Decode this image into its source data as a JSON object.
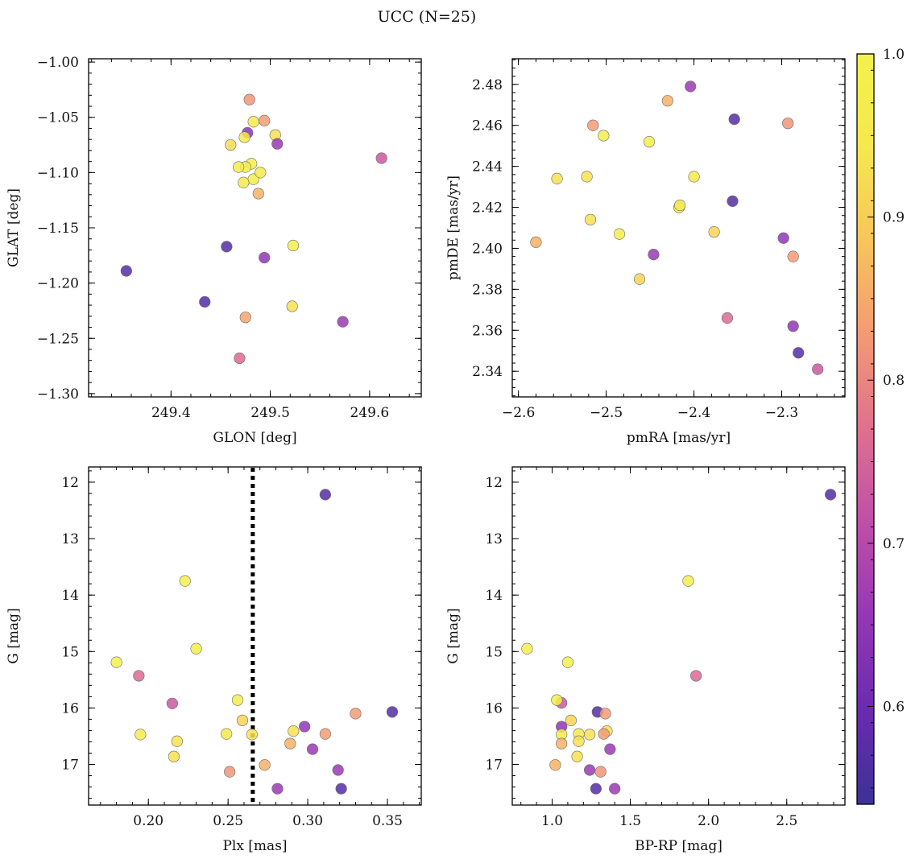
{
  "figure": {
    "title": "UCC (N=25)"
  },
  "colorbar": {
    "range": [
      0.54,
      1.0
    ],
    "ticks": [
      0.6,
      0.7,
      0.8,
      0.9,
      1.0
    ],
    "tick_labels": [
      "0.6",
      "0.7",
      "0.8",
      "0.9",
      "1.0"
    ],
    "colormap": "plasma",
    "stops": [
      "#3c3197",
      "#6a2bb0",
      "#9537b5",
      "#bf4fa8",
      "#e0708e",
      "#f39a75",
      "#f9c45b",
      "#f6e84d",
      "#f2f24c"
    ]
  },
  "chart_data": [
    {
      "type": "scatter",
      "panel": "top-left",
      "xlabel": "GLON [deg]",
      "ylabel": "GLAT [deg]",
      "xlim": [
        249.317,
        249.652
      ],
      "ylim": [
        -1.303,
        -0.997
      ],
      "invert_y": false,
      "xticks": [
        249.4,
        249.5,
        249.6
      ],
      "xtick_labels": [
        "249.4",
        "249.5",
        "249.6"
      ],
      "yticks": [
        -1.3,
        -1.25,
        -1.2,
        -1.15,
        -1.1,
        -1.05,
        -1.0
      ],
      "ytick_labels": [
        "−1.30",
        "−1.25",
        "−1.20",
        "−1.15",
        "−1.10",
        "−1.05",
        "−1.00"
      ],
      "x": [
        249.479,
        249.494,
        249.483,
        249.477,
        249.505,
        249.474,
        249.507,
        249.46,
        249.612,
        249.481,
        249.475,
        249.468,
        249.483,
        249.473,
        249.488,
        249.355,
        249.456,
        249.523,
        249.494,
        249.434,
        249.522,
        249.475,
        249.573,
        249.469,
        249.49
      ],
      "y": [
        -1.034,
        -1.053,
        -1.054,
        -1.064,
        -1.066,
        -1.068,
        -1.074,
        -1.075,
        -1.087,
        -1.092,
        -1.095,
        -1.095,
        -1.106,
        -1.109,
        -1.119,
        -1.189,
        -1.167,
        -1.166,
        -1.177,
        -1.217,
        -1.221,
        -1.231,
        -1.235,
        -1.268,
        -1.1
      ],
      "color_values": [
        0.82,
        0.83,
        0.95,
        0.64,
        0.93,
        0.96,
        0.66,
        0.92,
        0.73,
        0.97,
        0.97,
        0.98,
        0.98,
        0.95,
        0.86,
        0.57,
        0.57,
        0.99,
        0.65,
        0.57,
        0.93,
        0.84,
        0.66,
        0.76,
        0.96
      ]
    },
    {
      "type": "scatter",
      "panel": "top-right",
      "xlabel": "pmRA [mas/yr]",
      "ylabel": "pmDE [mas/yr]",
      "xlim": [
        -2.607,
        -2.228
      ],
      "ylim": [
        2.3275,
        2.4925
      ],
      "invert_y": false,
      "xticks": [
        -2.6,
        -2.5,
        -2.4,
        -2.3
      ],
      "xtick_labels": [
        "−2.6",
        "−2.5",
        "−2.4",
        "−2.3"
      ],
      "yticks": [
        2.34,
        2.36,
        2.38,
        2.4,
        2.42,
        2.44,
        2.46,
        2.48
      ],
      "ytick_labels": [
        "2.34",
        "2.36",
        "2.38",
        "2.40",
        "2.42",
        "2.44",
        "2.46",
        "2.48"
      ],
      "x": [
        -2.404,
        -2.43,
        -2.354,
        -2.515,
        -2.503,
        -2.293,
        -2.451,
        -2.556,
        -2.522,
        -2.4,
        -2.417,
        -2.356,
        -2.416,
        -2.518,
        -2.377,
        -2.485,
        -2.58,
        -2.298,
        -2.287,
        -2.446,
        -2.462,
        -2.362,
        -2.287,
        -2.281,
        -2.259
      ],
      "y": [
        2.479,
        2.472,
        2.463,
        2.46,
        2.455,
        2.461,
        2.452,
        2.434,
        2.435,
        2.435,
        2.42,
        2.423,
        2.421,
        2.414,
        2.408,
        2.407,
        2.403,
        2.405,
        2.396,
        2.397,
        2.385,
        2.366,
        2.362,
        2.349,
        2.341
      ],
      "color_values": [
        0.66,
        0.86,
        0.57,
        0.83,
        0.97,
        0.82,
        0.98,
        0.93,
        0.93,
        0.95,
        0.98,
        0.57,
        0.95,
        0.93,
        0.91,
        0.97,
        0.86,
        0.65,
        0.83,
        0.66,
        0.91,
        0.76,
        0.65,
        0.57,
        0.73
      ]
    },
    {
      "type": "scatter",
      "panel": "bottom-left",
      "xlabel": "Plx [mas]",
      "ylabel": "G [mag]",
      "xlim": [
        0.1625,
        0.3712
      ],
      "ylim": [
        17.72,
        11.73
      ],
      "invert_y": true,
      "xticks": [
        0.2,
        0.25,
        0.3,
        0.35
      ],
      "xtick_labels": [
        "0.20",
        "0.25",
        "0.30",
        "0.35"
      ],
      "yticks": [
        12,
        13,
        14,
        15,
        16,
        17
      ],
      "ytick_labels": [
        "12",
        "13",
        "14",
        "15",
        "16",
        "17"
      ],
      "vline": {
        "x": 0.2655,
        "style": "dotted"
      },
      "x": [
        0.311,
        0.223,
        0.23,
        0.18,
        0.194,
        0.215,
        0.256,
        0.259,
        0.353,
        0.33,
        0.298,
        0.291,
        0.311,
        0.249,
        0.195,
        0.265,
        0.218,
        0.289,
        0.303,
        0.216,
        0.273,
        0.319,
        0.251,
        0.281,
        0.321
      ],
      "y": [
        12.22,
        13.75,
        14.95,
        15.19,
        15.43,
        15.92,
        15.86,
        16.22,
        16.07,
        16.1,
        16.33,
        16.41,
        16.46,
        16.46,
        16.47,
        16.47,
        16.59,
        16.63,
        16.73,
        16.86,
        17.01,
        17.1,
        17.13,
        17.43,
        17.43
      ],
      "color_values": [
        0.57,
        0.98,
        0.98,
        0.99,
        0.76,
        0.73,
        0.97,
        0.91,
        0.57,
        0.83,
        0.65,
        0.93,
        0.83,
        0.95,
        0.96,
        0.93,
        0.93,
        0.86,
        0.66,
        0.93,
        0.86,
        0.66,
        0.82,
        0.66,
        0.57
      ]
    },
    {
      "type": "scatter",
      "panel": "bottom-right",
      "xlabel": "BP-RP [mag]",
      "ylabel": "G [mag]",
      "xlim": [
        0.745,
        2.872
      ],
      "ylim": [
        17.72,
        11.73
      ],
      "invert_y": true,
      "xticks": [
        1.0,
        1.5,
        2.0,
        2.5
      ],
      "xtick_labels": [
        "1.0",
        "1.5",
        "2.0",
        "2.5"
      ],
      "yticks": [
        12,
        13,
        14,
        15,
        16,
        17
      ],
      "ytick_labels": [
        "12",
        "13",
        "14",
        "15",
        "16",
        "17"
      ],
      "x": [
        2.78,
        1.87,
        0.84,
        1.1,
        1.92,
        1.06,
        1.03,
        1.12,
        1.29,
        1.34,
        1.06,
        1.35,
        1.33,
        1.17,
        1.06,
        1.24,
        1.17,
        1.06,
        1.37,
        1.16,
        1.02,
        1.24,
        1.31,
        1.28,
        1.4
      ],
      "y": [
        12.22,
        13.75,
        14.95,
        15.19,
        15.43,
        15.91,
        15.86,
        16.22,
        16.07,
        16.1,
        16.33,
        16.41,
        16.46,
        16.46,
        16.47,
        16.47,
        16.59,
        16.63,
        16.73,
        16.86,
        17.01,
        17.1,
        17.13,
        17.43,
        17.43
      ],
      "color_values": [
        0.57,
        0.98,
        0.98,
        0.99,
        0.76,
        0.73,
        0.97,
        0.91,
        0.57,
        0.83,
        0.65,
        0.93,
        0.83,
        0.95,
        0.96,
        0.93,
        0.93,
        0.86,
        0.66,
        0.93,
        0.86,
        0.66,
        0.82,
        0.57,
        0.66
      ]
    }
  ]
}
